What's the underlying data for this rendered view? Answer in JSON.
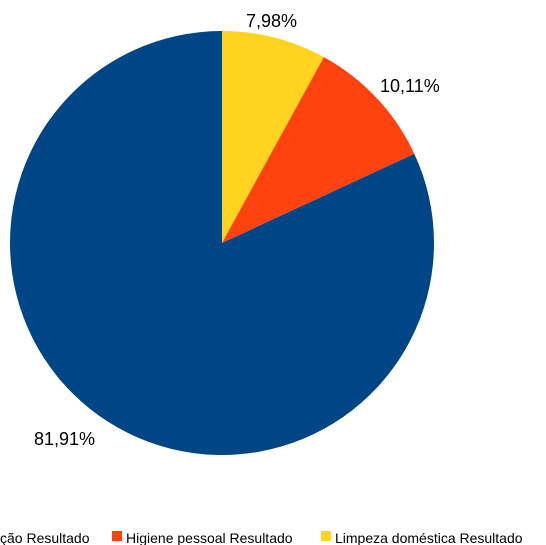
{
  "chart_data": {
    "type": "pie",
    "series": [
      {
        "name": "Alimentação Resultado",
        "value": 81.91,
        "label": "81,91%",
        "color": "#004586"
      },
      {
        "name": "Higiene pessoal Resultado",
        "value": 10.11,
        "label": "10,11%",
        "color": "#ff420e"
      },
      {
        "name": "Limpeza doméstica Resultado",
        "value": 7.98,
        "label": "7,98%",
        "color": "#ffd320"
      }
    ],
    "legend": {
      "placement": "bottom",
      "entries": [
        "ção Resultado",
        "Higiene pessoal Resultado",
        "Limpeza doméstica Resultado"
      ]
    },
    "title": ""
  }
}
